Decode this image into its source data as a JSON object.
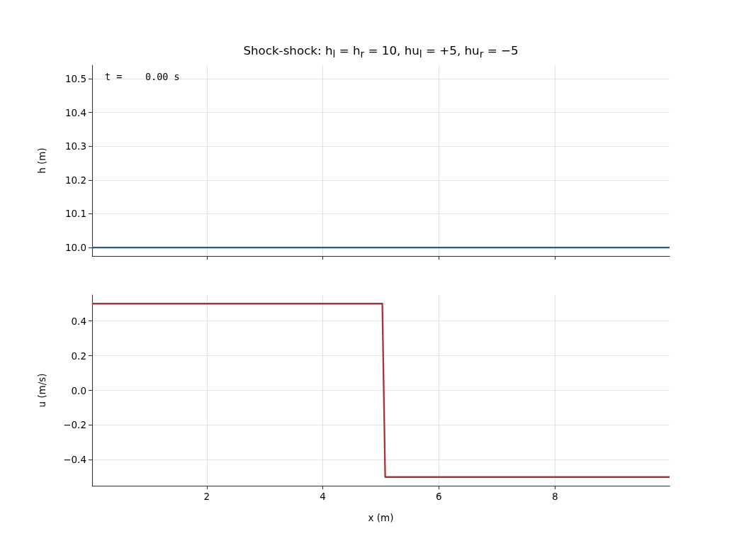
{
  "chart_data": [
    {
      "type": "line",
      "title": "Shock-shock: h$_{l}$ = h$_{r}$ = 10, hu$_{l}$ = +5, hu$_{r}$ = −5",
      "ylabel": "h (m)",
      "annotations": [
        "t =    0.00 s"
      ],
      "x": [
        0.025,
        9.975
      ],
      "series": [
        {
          "color": "#2b5a87",
          "values": [
            10,
            10
          ]
        }
      ],
      "xlim": [
        0.025,
        9.975
      ],
      "xticks": [
        2,
        4,
        6,
        8
      ],
      "ylim": [
        9.975,
        10.54
      ],
      "yticks": [
        {
          "value": 10,
          "label": "10.0"
        },
        10.1,
        10.2,
        10.3,
        10.4,
        10.5
      ],
      "grid": true,
      "tick_labels": "y"
    },
    {
      "type": "line",
      "xlabel": "x (m)",
      "ylabel": "u (m/s)",
      "x": [
        0.025,
        5.025,
        5.075,
        9.975
      ],
      "series": [
        {
          "color": "#a83236",
          "values": [
            0.5,
            0.5,
            -0.5,
            -0.5
          ]
        }
      ],
      "xlim": [
        0.025,
        9.975
      ],
      "xticks": [
        2,
        4,
        6,
        8
      ],
      "ylim": [
        -0.55,
        0.55
      ],
      "yticks": [
        {
          "value": -0.4,
          "label": "−0.4"
        },
        {
          "value": -0.2,
          "label": "−0.2"
        },
        {
          "value": 0,
          "label": "0.0"
        },
        0.2,
        0.4
      ],
      "grid": true
    }
  ]
}
